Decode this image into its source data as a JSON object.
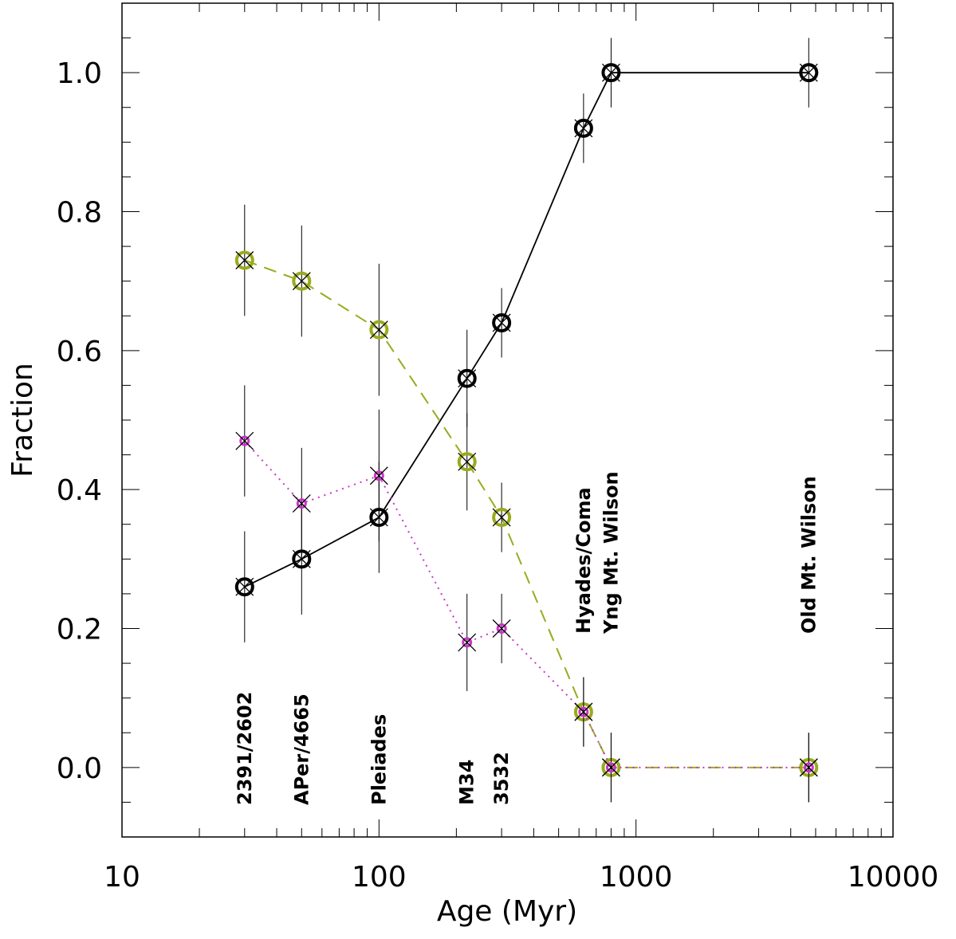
{
  "chart_data": {
    "type": "line",
    "title": "",
    "xlabel": "Age (Myr)",
    "ylabel": "Fraction",
    "xscale": "log",
    "xlim": [
      10,
      10000
    ],
    "ylim": [
      -0.1,
      1.1
    ],
    "x_ticks": [
      10,
      100,
      1000,
      10000
    ],
    "x_tick_labels": [
      "10",
      "100",
      "1000",
      "10000"
    ],
    "y_ticks": [
      0.0,
      0.2,
      0.4,
      0.6,
      0.8,
      1.0
    ],
    "y_tick_labels": [
      "0.0",
      "0.2",
      "0.4",
      "0.6",
      "0.8",
      "1.0"
    ],
    "grid": false,
    "legend": "none",
    "series": [
      {
        "style": "solid",
        "color": "#000000",
        "marker": "open-circle-with-x",
        "x": [
          30,
          50,
          100,
          220,
          300,
          625,
          800,
          4700
        ],
        "y": [
          0.26,
          0.3,
          0.36,
          0.56,
          0.64,
          0.92,
          1.0,
          1.0
        ],
        "err": [
          0.08,
          0.08,
          0.08,
          0.07,
          0.05,
          0.05,
          0.05,
          0.05
        ]
      },
      {
        "style": "dashed",
        "color": "#9aaa1e",
        "marker": "open-circle-with-x",
        "x": [
          30,
          50,
          100,
          220,
          300,
          625,
          800,
          4700
        ],
        "y": [
          0.73,
          0.7,
          0.63,
          0.44,
          0.36,
          0.08,
          0.0,
          0.0
        ],
        "err": [
          0.08,
          0.08,
          0.095,
          0.07,
          0.05,
          0.05,
          0.05,
          0.05
        ]
      },
      {
        "style": "dotted",
        "color": "#cc33cc",
        "marker": "small-circle-with-x",
        "x": [
          30,
          50,
          100,
          220,
          300,
          625,
          800,
          4700
        ],
        "y": [
          0.47,
          0.38,
          0.42,
          0.18,
          0.2,
          0.08,
          0.0,
          0.0
        ],
        "err": [
          0.08,
          0.08,
          0.095,
          0.07,
          0.05,
          0.05,
          0.05,
          0.05
        ]
      }
    ],
    "annotations": [
      {
        "text": "2391/2602",
        "x": 30,
        "lines": 1
      },
      {
        "text": "APer/4665",
        "x": 50,
        "lines": 1
      },
      {
        "text": "Pleiades",
        "x": 100,
        "lines": 1
      },
      {
        "text": "M34",
        "x": 220,
        "lines": 1
      },
      {
        "text": "3532",
        "x": 300,
        "lines": 1
      },
      {
        "text": "Hyades/Coma",
        "x": 625,
        "lines": 1
      },
      {
        "text": "Yng Mt. Wilson",
        "x": 800,
        "lines": 1
      },
      {
        "text": "Old Mt. Wilson",
        "x": 4700,
        "lines": 1
      }
    ]
  }
}
